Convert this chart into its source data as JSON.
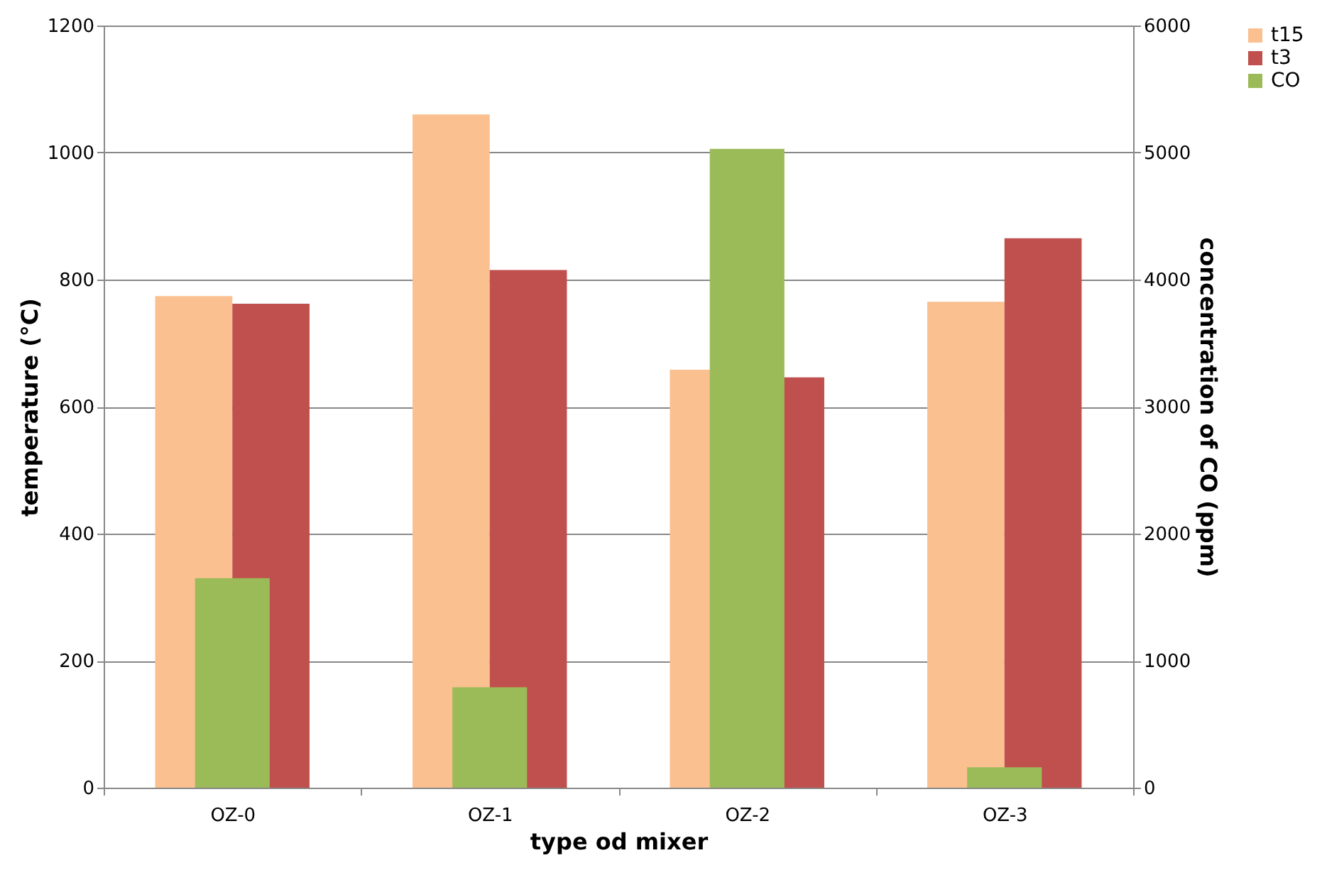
{
  "chart_data": {
    "type": "bar",
    "xlabel": "type od mixer",
    "ylabel": "temperature (°C)",
    "y2label": "concentration of CO (ppm)",
    "categories": [
      "OZ-0",
      "OZ-1",
      "OZ-2",
      "OZ-3"
    ],
    "series": [
      {
        "name": "t15",
        "color": "#fac090",
        "values": [
          774,
          1060,
          658,
          765
        ]
      },
      {
        "name": "t3",
        "color": "#c0504d",
        "values": [
          762,
          815,
          646,
          865
        ]
      },
      {
        "name": "CO",
        "color": "#9bbb59",
        "values": [
          1650,
          790,
          5030,
          160
        ],
        "axis": "y2"
      }
    ],
    "ylim": [
      0,
      1200
    ],
    "yticks": [
      0,
      200,
      400,
      600,
      800,
      1000,
      1200
    ],
    "y2lim": [
      0,
      6000
    ],
    "y2ticks": [
      0,
      1000,
      2000,
      3000,
      4000,
      5000,
      6000
    ],
    "grid": "y",
    "legend": "right"
  }
}
